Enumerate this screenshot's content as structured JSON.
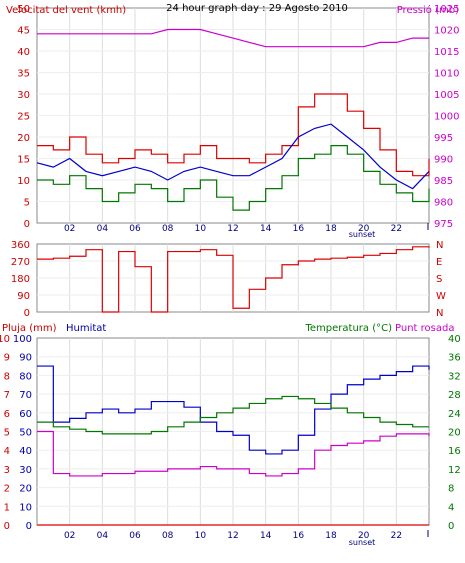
{
  "chart_data": [
    {
      "type": "line",
      "title": "24 hour graph day : 29 Agosto 2010",
      "left_axis_label": "Velocitat del vent (kmh)",
      "right_axis_label": "Pressió (mb)",
      "ylim_left": [
        0,
        50
      ],
      "ylim_right": [
        975,
        1025
      ],
      "left_ticks": [
        "0",
        "5",
        "10",
        "15",
        "20",
        "25",
        "30",
        "35",
        "40",
        "45",
        "50"
      ],
      "right_ticks": [
        "975",
        "980",
        "985",
        "990",
        "995",
        "1000",
        "1005",
        "1010",
        "1015",
        "1020",
        "1025"
      ],
      "x_ticks": [
        "02",
        "04",
        "06",
        "08",
        "10",
        "12",
        "14",
        "16",
        "18",
        "20",
        "22"
      ],
      "sunset_label": "sunset",
      "x": [
        0,
        1,
        2,
        3,
        4,
        5,
        6,
        7,
        8,
        9,
        10,
        11,
        12,
        13,
        14,
        15,
        16,
        17,
        18,
        19,
        20,
        21,
        22,
        23,
        24
      ],
      "series": [
        {
          "values": [
            1019,
            1019,
            1019,
            1019,
            1019,
            1019,
            1019,
            1019,
            1020,
            1020,
            1020,
            1019,
            1018,
            1017,
            1016,
            1016,
            1016,
            1016,
            1016,
            1016,
            1016,
            1017,
            1017,
            1018,
            1018
          ]
        },
        {
          "values": [
            18,
            17,
            20,
            16,
            14,
            15,
            17,
            16,
            14,
            16,
            18,
            15,
            15,
            14,
            16,
            18,
            27,
            30,
            30,
            26,
            22,
            17,
            12,
            11,
            15
          ]
        },
        {
          "values": [
            14,
            13,
            15,
            12,
            11,
            12,
            13,
            12,
            10,
            12,
            13,
            12,
            11,
            11,
            13,
            15,
            20,
            22,
            23,
            20,
            17,
            13,
            10,
            8,
            12
          ]
        },
        {
          "values": [
            10,
            9,
            11,
            8,
            5,
            7,
            9,
            8,
            5,
            8,
            10,
            6,
            3,
            5,
            8,
            11,
            15,
            16,
            18,
            16,
            12,
            9,
            7,
            5,
            8
          ]
        }
      ]
    },
    {
      "type": "scatter",
      "left_ticks": [
        "0",
        "90",
        "180",
        "270",
        "360"
      ],
      "right_ticks": [
        "N",
        "W",
        "S",
        "E",
        "N"
      ],
      "ylim": [
        0,
        360
      ],
      "x": [
        0,
        1,
        2,
        3,
        4,
        5,
        6,
        7,
        8,
        9,
        10,
        11,
        12,
        13,
        14,
        15,
        16,
        17,
        18,
        19,
        20,
        21,
        22,
        23,
        24
      ],
      "series": [
        {
          "values": [
            280,
            285,
            295,
            330,
            0,
            320,
            240,
            0,
            320,
            320,
            330,
            300,
            20,
            120,
            180,
            250,
            270,
            280,
            285,
            290,
            300,
            310,
            330,
            345,
            340
          ]
        }
      ]
    },
    {
      "type": "line",
      "left_axis_label_1": "Pluja (mm)",
      "left_axis_label_2": "Humitat",
      "right_axis_label_1": "Temperatura (°C)",
      "right_axis_label_2": "Punt rosada",
      "ylim_pluja": [
        0,
        10
      ],
      "ylim_humitat": [
        0,
        100
      ],
      "ylim_right": [
        0,
        40
      ],
      "pluja_ticks": [
        "0",
        "1",
        "2",
        "3",
        "4",
        "5",
        "6",
        "7",
        "8",
        "9",
        "10"
      ],
      "humitat_ticks": [
        "0",
        "10",
        "20",
        "30",
        "40",
        "50",
        "60",
        "70",
        "80",
        "90",
        "100"
      ],
      "right_ticks": [
        "0",
        "4",
        "8",
        "12",
        "16",
        "20",
        "24",
        "28",
        "32",
        "36",
        "40"
      ],
      "x_ticks": [
        "02",
        "04",
        "06",
        "08",
        "10",
        "12",
        "14",
        "16",
        "18",
        "20",
        "22"
      ],
      "sunset_label": "sunset",
      "x": [
        0,
        1,
        2,
        3,
        4,
        5,
        6,
        7,
        8,
        9,
        10,
        11,
        12,
        13,
        14,
        15,
        16,
        17,
        18,
        19,
        20,
        21,
        22,
        23,
        24
      ],
      "series": [
        {
          "values": [
            0,
            0,
            0,
            0,
            0,
            0,
            0,
            0,
            0,
            0,
            0,
            0,
            0,
            0,
            0,
            0,
            0,
            0,
            0,
            0,
            0,
            0,
            0,
            0,
            0
          ]
        },
        {
          "values": [
            85,
            55,
            57,
            60,
            62,
            60,
            62,
            66,
            66,
            63,
            55,
            50,
            48,
            40,
            38,
            40,
            48,
            62,
            70,
            75,
            78,
            80,
            82,
            85,
            83
          ]
        },
        {
          "values": [
            22,
            21,
            20.5,
            20,
            19.5,
            19.5,
            19.5,
            20,
            21,
            22,
            23,
            24,
            25,
            26,
            27,
            27.5,
            27,
            26,
            25,
            24,
            23,
            22,
            21.5,
            21,
            21
          ]
        },
        {
          "values": [
            20,
            11,
            10.5,
            10.5,
            11,
            11,
            11.5,
            11.5,
            12,
            12,
            12.5,
            12,
            12,
            11,
            10.5,
            11,
            12,
            16,
            17,
            17.5,
            18,
            19,
            19.5,
            19.5,
            19
          ]
        }
      ]
    }
  ]
}
